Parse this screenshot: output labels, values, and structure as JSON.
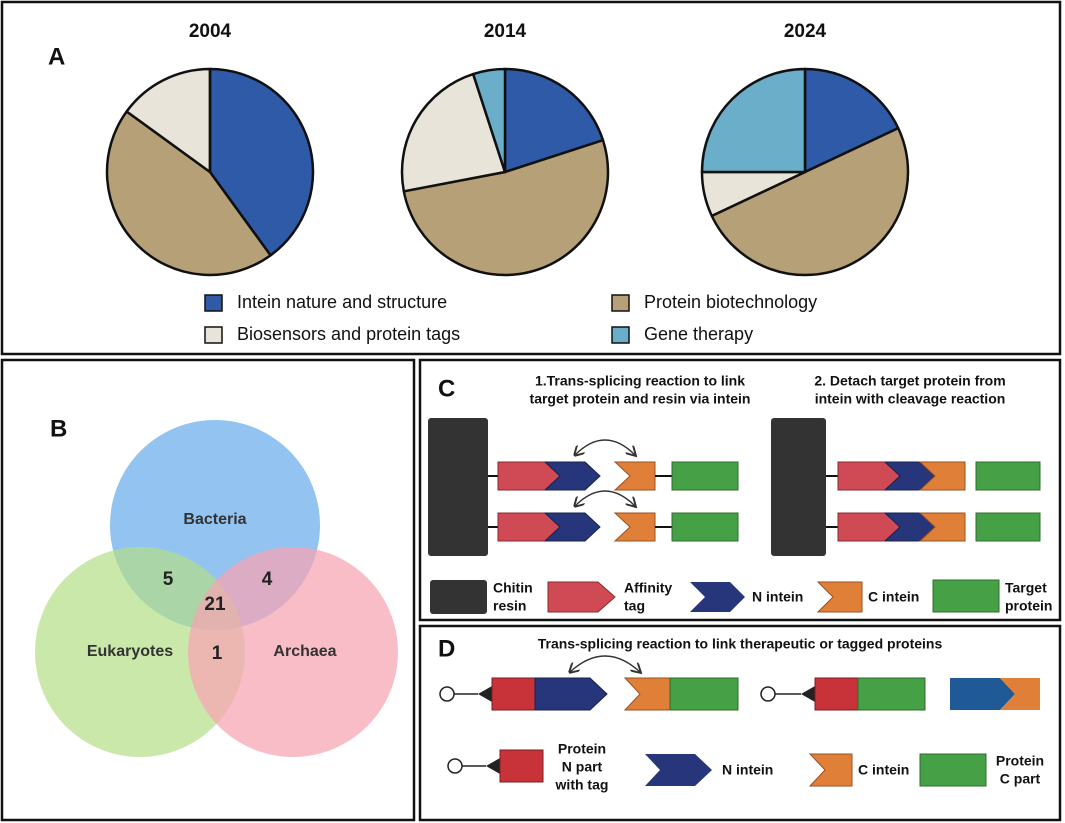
{
  "panel_labels": [
    "A",
    "B",
    "C",
    "D"
  ],
  "chart_data": [
    {
      "type": "pie",
      "title": "2004",
      "categories": [
        "Intein nature and structure",
        "Protein biotechnology",
        "Biosensors and protein tags",
        "Gene therapy"
      ],
      "values": [
        40,
        45,
        15,
        0
      ],
      "colors": [
        "#2e5aa8",
        "#b5a077",
        "#e8e4da",
        "#6aaec9"
      ]
    },
    {
      "type": "pie",
      "title": "2014",
      "categories": [
        "Intein nature and structure",
        "Protein biotechnology",
        "Biosensors and protein tags",
        "Gene therapy"
      ],
      "values": [
        20,
        52,
        23,
        5
      ],
      "colors": [
        "#2e5aa8",
        "#b5a077",
        "#e8e4da",
        "#6aaec9"
      ]
    },
    {
      "type": "pie",
      "title": "2024",
      "categories": [
        "Intein nature and structure",
        "Protein biotechnology",
        "Biosensors and protein tags",
        "Gene therapy"
      ],
      "values": [
        18,
        50,
        7,
        25
      ],
      "colors": [
        "#2e5aa8",
        "#b5a077",
        "#e8e4da",
        "#6aaec9"
      ]
    }
  ],
  "venn": {
    "sets": [
      "Bacteria",
      "Eukaryotes",
      "Archaea"
    ],
    "counts": [
      5,
      4,
      21,
      1
    ]
  },
  "panel_c": {
    "step1": [
      "1.Trans-splicing reaction to link",
      "target protein and resin via intein"
    ],
    "step2": [
      "2. Detach target protein from",
      "intein with cleavage reaction"
    ],
    "legend": [
      [
        "Chitin",
        "resin"
      ],
      [
        "Affinity",
        "tag"
      ],
      [
        "N intein"
      ],
      [
        "C intein"
      ],
      [
        "Target",
        "protein"
      ]
    ]
  },
  "panel_d": {
    "title": "Trans-splicing reaction to link therapeutic or tagged proteins",
    "legend": [
      [
        "Protein",
        "N part",
        "with tag"
      ],
      [
        "N intein"
      ],
      [
        "C intein"
      ],
      [
        "Protein",
        "C part"
      ]
    ]
  }
}
